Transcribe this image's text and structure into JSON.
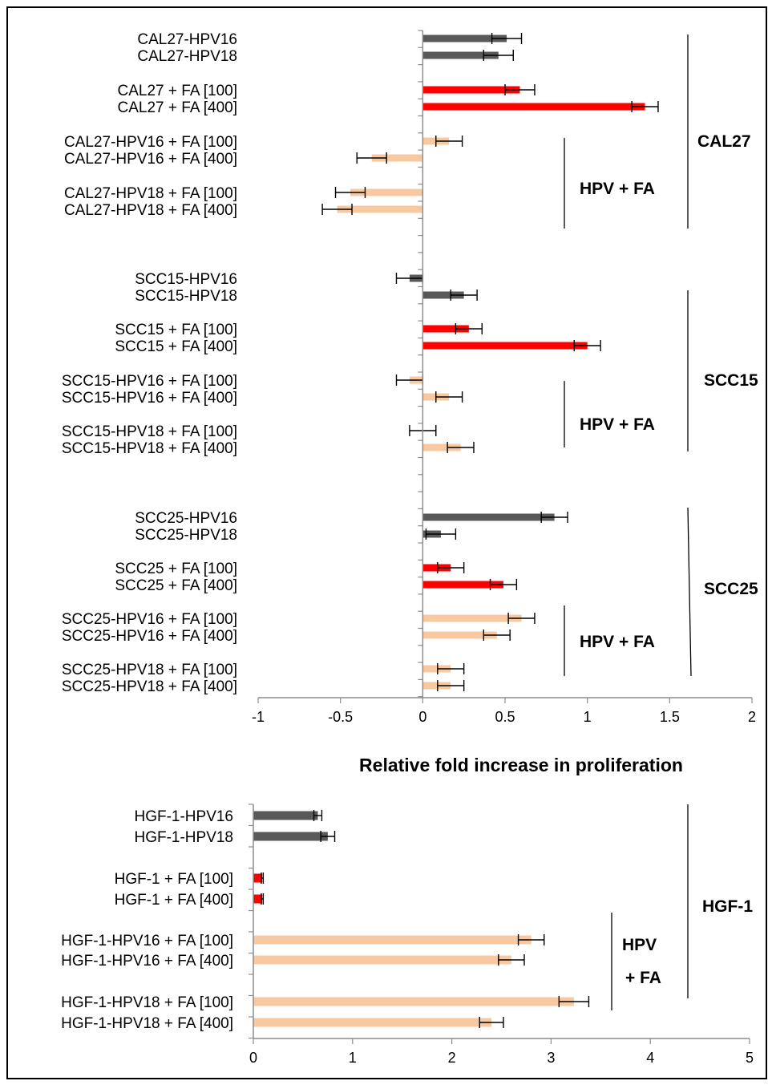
{
  "chart_data": [
    {
      "type": "bar",
      "orientation": "horizontal",
      "xlabel": "Relative fold increase in proliferation",
      "xlim": [
        -1,
        2
      ],
      "xticks": [
        -1,
        -0.5,
        0,
        0.5,
        1,
        1.5,
        2
      ],
      "xtick_labels": [
        "-1",
        "-0.5",
        "0",
        "0.5",
        "1",
        "1.5",
        "2"
      ],
      "grid": false,
      "colors": {
        "HPV": "#595959",
        "FA": "#ff0000",
        "HPV + FA": "#f8c9a0"
      },
      "bars": [
        {
          "label": "CAL27-HPV16",
          "value": 0.51,
          "err": 0.09,
          "color_key": "HPV"
        },
        {
          "label": "CAL27-HPV18",
          "value": 0.46,
          "err": 0.09,
          "color_key": "HPV"
        },
        {
          "label": "CAL27 + FA [100]",
          "value": 0.59,
          "err": 0.09,
          "color_key": "FA"
        },
        {
          "label": "CAL27 + FA [400]",
          "value": 1.35,
          "err": 0.08,
          "color_key": "FA"
        },
        {
          "label": "CAL27-HPV16 + FA [100]",
          "value": 0.16,
          "err": 0.08,
          "color_key": "HPV + FA"
        },
        {
          "label": "CAL27-HPV16 + FA [400]",
          "value": -0.31,
          "err": 0.09,
          "color_key": "HPV + FA"
        },
        {
          "label": "CAL27-HPV18 + FA [100]",
          "value": -0.44,
          "err": 0.09,
          "color_key": "HPV + FA"
        },
        {
          "label": "CAL27-HPV18 + FA [400]",
          "value": -0.52,
          "err": 0.09,
          "color_key": "HPV + FA"
        },
        {
          "label": "SCC15-HPV16",
          "value": -0.08,
          "err": 0.08,
          "color_key": "HPV"
        },
        {
          "label": "SCC15-HPV18",
          "value": 0.25,
          "err": 0.08,
          "color_key": "HPV"
        },
        {
          "label": "SCC15 + FA [100]",
          "value": 0.28,
          "err": 0.08,
          "color_key": "FA"
        },
        {
          "label": "SCC15 + FA [400]",
          "value": 1.0,
          "err": 0.08,
          "color_key": "FA"
        },
        {
          "label": "SCC15-HPV16 + FA [100]",
          "value": -0.08,
          "err": 0.08,
          "color_key": "HPV + FA"
        },
        {
          "label": "SCC15-HPV16 + FA [400]",
          "value": 0.16,
          "err": 0.08,
          "color_key": "HPV + FA"
        },
        {
          "label": "SCC15-HPV18 + FA [100]",
          "value": 0.0,
          "err": 0.08,
          "color_key": "HPV + FA"
        },
        {
          "label": "SCC15-HPV18 + FA [400]",
          "value": 0.23,
          "err": 0.08,
          "color_key": "HPV + FA"
        },
        {
          "label": "SCC25-HPV16",
          "value": 0.8,
          "err": 0.08,
          "color_key": "HPV"
        },
        {
          "label": "SCC25-HPV18",
          "value": 0.11,
          "err": 0.09,
          "color_key": "HPV"
        },
        {
          "label": "SCC25 + FA [100]",
          "value": 0.17,
          "err": 0.08,
          "color_key": "FA"
        },
        {
          "label": "SCC25 + FA [400]",
          "value": 0.49,
          "err": 0.08,
          "color_key": "FA"
        },
        {
          "label": "SCC25-HPV16 + FA [100]",
          "value": 0.6,
          "err": 0.08,
          "color_key": "HPV + FA"
        },
        {
          "label": "SCC25-HPV16 + FA [400]",
          "value": 0.45,
          "err": 0.08,
          "color_key": "HPV + FA"
        },
        {
          "label": "SCC25-HPV18 + FA [100]",
          "value": 0.17,
          "err": 0.08,
          "color_key": "HPV + FA"
        },
        {
          "label": "SCC25-HPV18 + FA [400]",
          "value": 0.17,
          "err": 0.08,
          "color_key": "HPV + FA"
        }
      ],
      "annotations": [
        "CAL27",
        "HPV + FA",
        "SCC15",
        "HPV + FA",
        "SCC25",
        "HPV + FA"
      ]
    },
    {
      "type": "bar",
      "orientation": "horizontal",
      "xlim": [
        0,
        5
      ],
      "xticks": [
        0,
        1,
        2,
        3,
        4,
        5
      ],
      "xtick_labels": [
        "0",
        "1",
        "2",
        "3",
        "4",
        "5"
      ],
      "grid": false,
      "colors": {
        "HPV": "#595959",
        "FA": "#ff0000",
        "HPV + FA": "#f8c9a0"
      },
      "bars": [
        {
          "label": "HGF-1-HPV16",
          "value": 0.65,
          "err": 0.04,
          "color_key": "HPV"
        },
        {
          "label": "HGF-1-HPV18",
          "value": 0.75,
          "err": 0.07,
          "color_key": "HPV"
        },
        {
          "label": "HGF-1 + FA [100]",
          "value": 0.09,
          "err": 0.01,
          "color_key": "FA"
        },
        {
          "label": "HGF-1 + FA [400]",
          "value": 0.09,
          "err": 0.01,
          "color_key": "FA"
        },
        {
          "label": "HGF-1-HPV16 + FA [100]",
          "value": 2.8,
          "err": 0.13,
          "color_key": "HPV + FA"
        },
        {
          "label": "HGF-1-HPV16 + FA [400]",
          "value": 2.6,
          "err": 0.13,
          "color_key": "HPV + FA"
        },
        {
          "label": "HGF-1-HPV18 + FA [100]",
          "value": 3.23,
          "err": 0.15,
          "color_key": "HPV + FA"
        },
        {
          "label": "HGF-1-HPV18 + FA [400]",
          "value": 2.4,
          "err": 0.12,
          "color_key": "HPV + FA"
        }
      ],
      "annotations": [
        "HGF-1",
        "HPV",
        "+ FA"
      ]
    }
  ]
}
